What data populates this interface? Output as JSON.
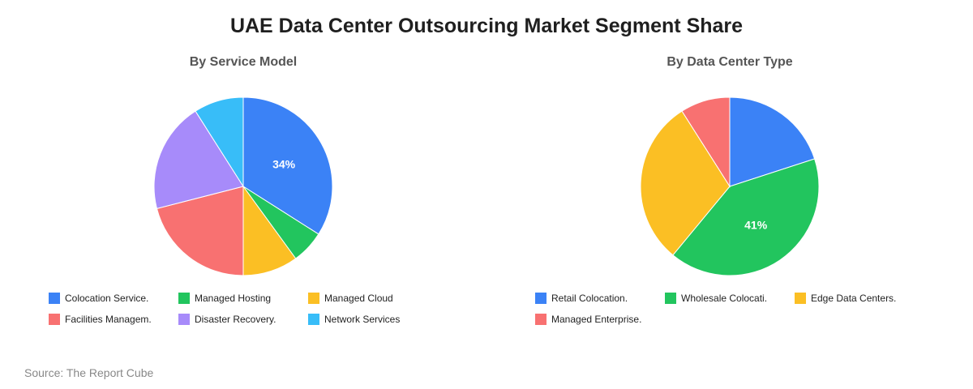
{
  "title": "UAE Data Center Outsourcing Market Segment Share",
  "source": "Source: The Report Cube",
  "chart_data": [
    {
      "type": "pie",
      "title": "By Service Model",
      "categories": [
        "Colocation Service.",
        "Managed Hosting",
        "Managed Cloud",
        "Facilities Managem.",
        "Disaster Recovery.",
        "Network Services"
      ],
      "values": [
        34,
        6,
        10,
        21,
        20,
        9
      ],
      "shown_labels": [
        "34%",
        "",
        "",
        "",
        "",
        ""
      ],
      "colors": [
        "#3b82f6",
        "#22c55e",
        "#fbbf24",
        "#f87171",
        "#a78bfa",
        "#38bdf8"
      ],
      "legend": "bottom"
    },
    {
      "type": "pie",
      "title": "By Data Center Type",
      "categories": [
        "Retail Colocation.",
        "Wholesale Colocati.",
        "Edge Data Centers.",
        "Managed Enterprise."
      ],
      "values": [
        20,
        41,
        30,
        9
      ],
      "shown_labels": [
        "",
        "41%",
        "",
        ""
      ],
      "colors": [
        "#3b82f6",
        "#22c55e",
        "#fbbf24",
        "#f87171"
      ],
      "legend": "bottom"
    }
  ]
}
